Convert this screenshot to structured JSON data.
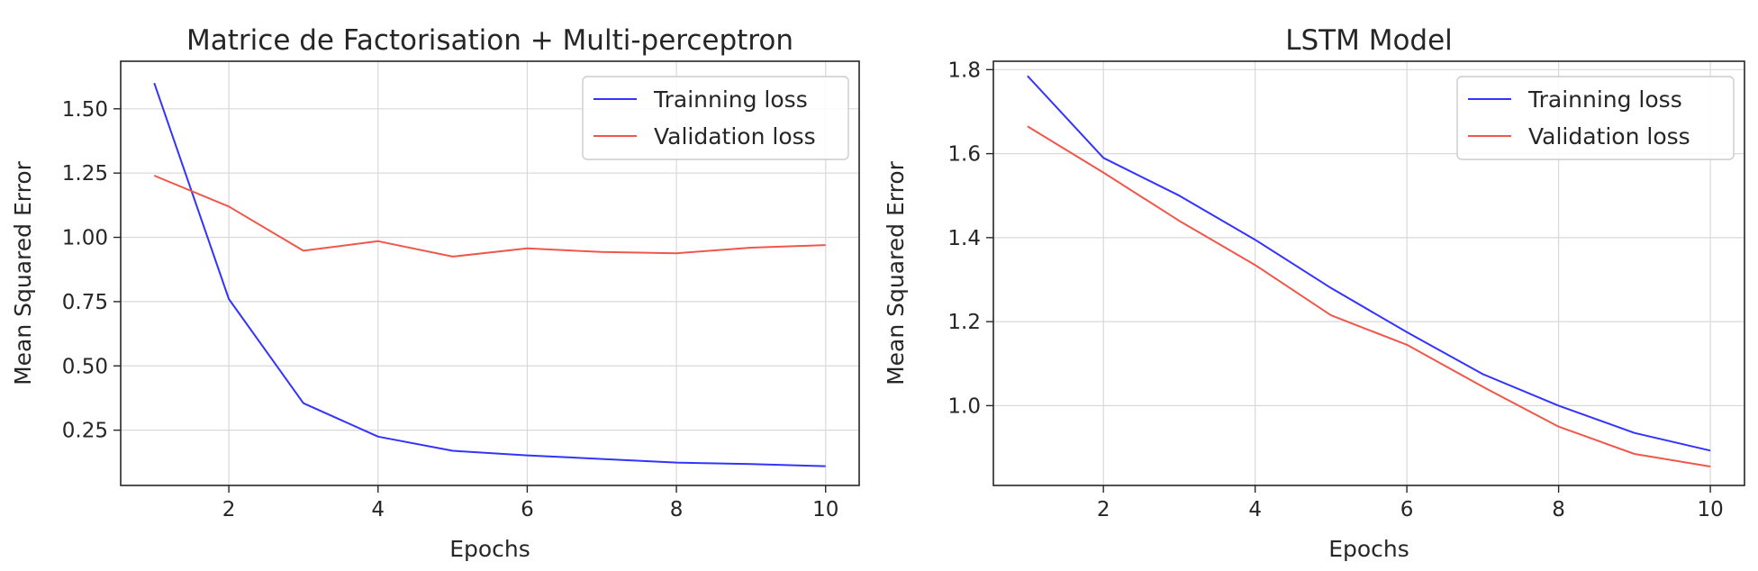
{
  "chart_data": [
    {
      "type": "line",
      "title": "Matrice de Factorisation + Multi-perceptron",
      "xlabel": "Epochs",
      "ylabel": "Mean Squared Error",
      "xlim": [
        0.55,
        10.45
      ],
      "ylim": [
        0.035,
        1.685
      ],
      "xticks": [
        2,
        4,
        6,
        8,
        10
      ],
      "xtick_labels": [
        "2",
        "4",
        "6",
        "8",
        "10"
      ],
      "yticks": [
        0.25,
        0.5,
        0.75,
        1.0,
        1.25,
        1.5
      ],
      "ytick_labels": [
        "0.25",
        "0.50",
        "0.75",
        "1.00",
        "1.25",
        "1.50"
      ],
      "grid": true,
      "legend_position": "top-right",
      "x": [
        1,
        2,
        3,
        4,
        5,
        6,
        7,
        8,
        9,
        10
      ],
      "series": [
        {
          "name": "Trainning loss",
          "color": "#3333ff",
          "values": [
            1.6,
            0.76,
            0.355,
            0.225,
            0.17,
            0.152,
            0.138,
            0.124,
            0.118,
            0.11
          ]
        },
        {
          "name": "Validation loss",
          "color": "#f0574a",
          "values": [
            1.24,
            1.12,
            0.948,
            0.985,
            0.925,
            0.957,
            0.943,
            0.938,
            0.96,
            0.97
          ]
        }
      ]
    },
    {
      "type": "line",
      "title": "LSTM Model",
      "xlabel": "Epochs",
      "ylabel": "Mean Squared Error",
      "xlim": [
        0.55,
        10.45
      ],
      "ylim": [
        0.81,
        1.82
      ],
      "xticks": [
        2,
        4,
        6,
        8,
        10
      ],
      "xtick_labels": [
        "2",
        "4",
        "6",
        "8",
        "10"
      ],
      "yticks": [
        1.0,
        1.2,
        1.4,
        1.6,
        1.8
      ],
      "ytick_labels": [
        "1.0",
        "1.2",
        "1.4",
        "1.6",
        "1.8"
      ],
      "grid": true,
      "legend_position": "top-right",
      "x": [
        1,
        2,
        3,
        4,
        5,
        6,
        7,
        8,
        9,
        10
      ],
      "series": [
        {
          "name": "Trainning loss",
          "color": "#3333ff",
          "values": [
            1.785,
            1.59,
            1.5,
            1.395,
            1.28,
            1.175,
            1.075,
            1.0,
            0.935,
            0.893
          ]
        },
        {
          "name": "Validation loss",
          "color": "#f0574a",
          "values": [
            1.665,
            1.555,
            1.44,
            1.335,
            1.215,
            1.145,
            1.045,
            0.95,
            0.885,
            0.855
          ]
        }
      ]
    }
  ]
}
